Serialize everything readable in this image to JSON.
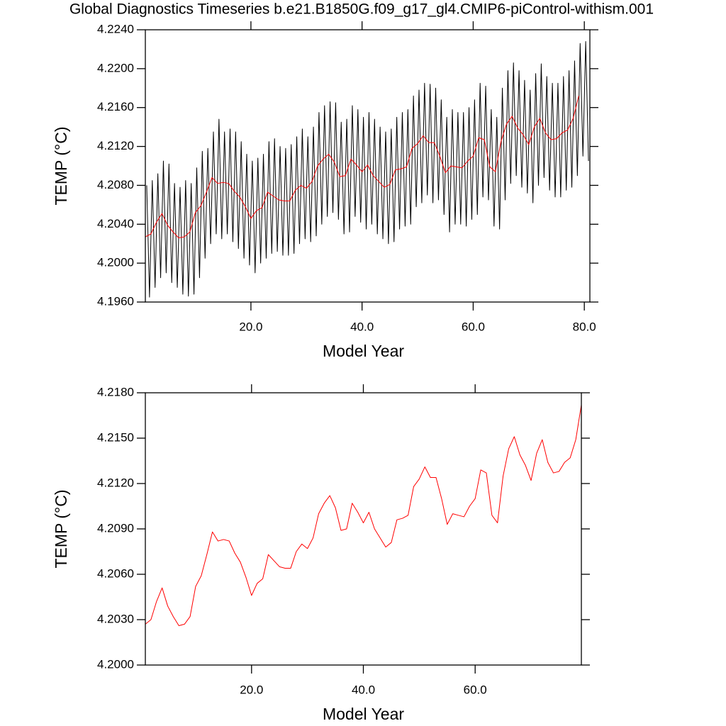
{
  "title": "Global Diagnostics Timeseries b.e21.B1850G.f09_g17_gl4.CMIP6-piControl-withism.001",
  "chart_data": [
    {
      "type": "line",
      "xlabel": "Model Year",
      "ylabel": "TEMP (°C)",
      "xlim": [
        1,
        81
      ],
      "ylim": [
        4.196,
        4.224
      ],
      "xticks": [
        {
          "value": 20,
          "label": "20.0"
        },
        {
          "value": 40,
          "label": "40.0"
        },
        {
          "value": 60,
          "label": "60.0"
        },
        {
          "value": 80,
          "label": "80.0"
        }
      ],
      "yticks": [
        {
          "value": 4.196,
          "label": "4.1960"
        },
        {
          "value": 4.2,
          "label": "4.2000"
        },
        {
          "value": 4.204,
          "label": "4.2040"
        },
        {
          "value": 4.208,
          "label": "4.2080"
        },
        {
          "value": 4.212,
          "label": "4.2120"
        },
        {
          "value": 4.216,
          "label": "4.2160"
        },
        {
          "value": 4.22,
          "label": "4.2200"
        },
        {
          "value": 4.224,
          "label": "4.2240"
        }
      ],
      "series": [
        {
          "color": "#000000",
          "x": [
            1.25,
            1.75,
            2.25,
            2.75,
            3.25,
            3.75,
            4.25,
            4.75,
            5.25,
            5.75,
            6.25,
            6.75,
            7.25,
            7.75,
            8.25,
            8.75,
            9.25,
            9.75,
            10.25,
            10.75,
            11.25,
            11.75,
            12.25,
            12.75,
            13.25,
            13.75,
            14.25,
            14.75,
            15.25,
            15.75,
            16.25,
            16.75,
            17.25,
            17.75,
            18.25,
            18.75,
            19.25,
            19.75,
            20.25,
            20.75,
            21.25,
            21.75,
            22.25,
            22.75,
            23.25,
            23.75,
            24.25,
            24.75,
            25.25,
            25.75,
            26.25,
            26.75,
            27.25,
            27.75,
            28.25,
            28.75,
            29.25,
            29.75,
            30.25,
            30.75,
            31.25,
            31.75,
            32.25,
            32.75,
            33.25,
            33.75,
            34.25,
            34.75,
            35.25,
            35.75,
            36.25,
            36.75,
            37.25,
            37.75,
            38.25,
            38.75,
            39.25,
            39.75,
            40.25,
            40.75,
            41.25,
            41.75,
            42.25,
            42.75,
            43.25,
            43.75,
            44.25,
            44.75,
            45.25,
            45.75,
            46.25,
            46.75,
            47.25,
            47.75,
            48.25,
            48.75,
            49.25,
            49.75,
            50.25,
            50.75,
            51.25,
            51.75,
            52.25,
            52.75,
            53.25,
            53.75,
            54.25,
            54.75,
            55.25,
            55.75,
            56.25,
            56.75,
            57.25,
            57.75,
            58.25,
            58.75,
            59.25,
            59.75,
            60.25,
            60.75,
            61.25,
            61.75,
            62.25,
            62.75,
            63.25,
            63.75,
            64.25,
            64.75,
            65.25,
            65.75,
            66.25,
            66.75,
            67.25,
            67.75,
            68.25,
            68.75,
            69.25,
            69.75,
            70.25,
            70.75,
            71.25,
            71.75,
            72.25,
            72.75,
            73.25,
            73.75,
            74.25,
            74.75,
            75.25,
            75.75,
            76.25,
            76.75,
            77.25,
            77.75,
            78.25,
            78.75,
            79.25,
            79.75,
            80.25,
            80.75
          ],
          "values": [
            4.208,
            4.1965,
            4.2085,
            4.1975,
            4.2092,
            4.1985,
            4.2105,
            4.199,
            4.2102,
            4.198,
            4.2082,
            4.1975,
            4.2078,
            4.1968,
            4.2085,
            4.1966,
            4.2082,
            4.1968,
            4.2098,
            4.1985,
            4.2115,
            4.2005,
            4.2118,
            4.202,
            4.2135,
            4.203,
            4.2148,
            4.2025,
            4.2135,
            4.203,
            4.2138,
            4.2022,
            4.2135,
            4.2015,
            4.2125,
            4.2005,
            4.2112,
            4.1998,
            4.2105,
            4.199,
            4.2108,
            4.2,
            4.2112,
            4.2005,
            4.2125,
            4.201,
            4.2128,
            4.2012,
            4.212,
            4.2008,
            4.2118,
            4.2008,
            4.2122,
            4.201,
            4.213,
            4.202,
            4.2138,
            4.2025,
            4.213,
            4.2022,
            4.214,
            4.2028,
            4.2155,
            4.204,
            4.2162,
            4.2048,
            4.2166,
            4.2052,
            4.2165,
            4.2045,
            4.2145,
            4.203,
            4.2148,
            4.2032,
            4.2162,
            4.2048,
            4.2158,
            4.2042,
            4.215,
            4.2035,
            4.2155,
            4.204,
            4.2148,
            4.203,
            4.214,
            4.2025,
            4.2135,
            4.202,
            4.2138,
            4.2022,
            4.215,
            4.2035,
            4.2155,
            4.2038,
            4.2158,
            4.204,
            4.2172,
            4.2058,
            4.2178,
            4.2062,
            4.2185,
            4.207,
            4.2184,
            4.2062,
            4.218,
            4.2065,
            4.2168,
            4.205,
            4.215,
            4.2032,
            4.2158,
            4.204,
            4.2155,
            4.204,
            4.2155,
            4.2038,
            4.216,
            4.2045,
            4.2168,
            4.205,
            4.2185,
            4.2068,
            4.2182,
            4.2065,
            4.2158,
            4.2038,
            4.215,
            4.2035,
            4.218,
            4.2065,
            4.2198,
            4.2082,
            4.2206,
            4.209,
            4.2198,
            4.2078,
            4.2188,
            4.2072,
            4.2178,
            4.2062,
            4.2195,
            4.208,
            4.2205,
            4.2088,
            4.2192,
            4.2075,
            4.2185,
            4.2068,
            4.2185,
            4.2068,
            4.2192,
            4.2075,
            4.2198,
            4.2078,
            4.2208,
            4.209,
            4.2226,
            4.211,
            4.2228,
            4.2105
          ]
        },
        {
          "color": "#ff0000",
          "x": [
            1,
            2,
            3,
            4,
            5,
            6,
            7,
            8,
            9,
            10,
            11,
            12,
            13,
            14,
            15,
            16,
            17,
            18,
            19,
            20,
            21,
            22,
            23,
            24,
            25,
            26,
            27,
            28,
            29,
            30,
            31,
            32,
            33,
            34,
            35,
            36,
            37,
            38,
            39,
            40,
            41,
            42,
            43,
            44,
            45,
            46,
            47,
            48,
            49,
            50,
            51,
            52,
            53,
            54,
            55,
            56,
            57,
            58,
            59,
            60,
            61,
            62,
            63,
            64,
            65,
            66,
            67,
            68,
            69,
            70,
            71,
            72,
            73,
            74,
            75,
            76,
            77,
            78,
            79
          ],
          "values": [
            4.2027,
            4.203,
            4.2042,
            4.2051,
            4.2039,
            4.2032,
            4.2026,
            4.2027,
            4.2032,
            4.2052,
            4.2059,
            4.2073,
            4.2088,
            4.2082,
            4.2083,
            4.2082,
            4.2074,
            4.2068,
            4.2058,
            4.2046,
            4.2054,
            4.2057,
            4.2073,
            4.2069,
            4.2065,
            4.2064,
            4.2064,
            4.2075,
            4.208,
            4.2077,
            4.2084,
            4.21,
            4.2107,
            4.2112,
            4.2104,
            4.2089,
            4.209,
            4.2107,
            4.2101,
            4.2094,
            4.2101,
            4.209,
            4.2084,
            4.2078,
            4.2081,
            4.2096,
            4.2097,
            4.2099,
            4.2118,
            4.2123,
            4.2131,
            4.2124,
            4.2124,
            4.211,
            4.2093,
            4.21,
            4.2099,
            4.2098,
            4.2105,
            4.211,
            4.2129,
            4.2127,
            4.2099,
            4.2094,
            4.2125,
            4.2143,
            4.2151,
            4.2139,
            4.2132,
            4.2122,
            4.214,
            4.2149,
            4.2134,
            4.2127,
            4.2128,
            4.2134,
            4.2137,
            4.2149,
            4.2172
          ]
        }
      ]
    },
    {
      "type": "line",
      "xlabel": "Model Year",
      "ylabel": "TEMP (°C)",
      "xlim": [
        1,
        79
      ],
      "ylim": [
        4.2,
        4.218
      ],
      "xticks": [
        {
          "value": 20,
          "label": "20.0"
        },
        {
          "value": 40,
          "label": "40.0"
        },
        {
          "value": 60,
          "label": "60.0"
        }
      ],
      "yticks": [
        {
          "value": 4.2,
          "label": "4.2000"
        },
        {
          "value": 4.203,
          "label": "4.2030"
        },
        {
          "value": 4.206,
          "label": "4.2060"
        },
        {
          "value": 4.209,
          "label": "4.2090"
        },
        {
          "value": 4.212,
          "label": "4.2120"
        },
        {
          "value": 4.215,
          "label": "4.2150"
        },
        {
          "value": 4.218,
          "label": "4.2180"
        }
      ],
      "series": [
        {
          "color": "#ff0000",
          "x": [
            1,
            2,
            3,
            4,
            5,
            6,
            7,
            8,
            9,
            10,
            11,
            12,
            13,
            14,
            15,
            16,
            17,
            18,
            19,
            20,
            21,
            22,
            23,
            24,
            25,
            26,
            27,
            28,
            29,
            30,
            31,
            32,
            33,
            34,
            35,
            36,
            37,
            38,
            39,
            40,
            41,
            42,
            43,
            44,
            45,
            46,
            47,
            48,
            49,
            50,
            51,
            52,
            53,
            54,
            55,
            56,
            57,
            58,
            59,
            60,
            61,
            62,
            63,
            64,
            65,
            66,
            67,
            68,
            69,
            70,
            71,
            72,
            73,
            74,
            75,
            76,
            77,
            78,
            79
          ],
          "values": [
            4.2027,
            4.203,
            4.2042,
            4.2051,
            4.2039,
            4.2032,
            4.2026,
            4.2027,
            4.2032,
            4.2052,
            4.2059,
            4.2073,
            4.2088,
            4.2082,
            4.2083,
            4.2082,
            4.2074,
            4.2068,
            4.2058,
            4.2046,
            4.2054,
            4.2057,
            4.2073,
            4.2069,
            4.2065,
            4.2064,
            4.2064,
            4.2075,
            4.208,
            4.2077,
            4.2084,
            4.21,
            4.2107,
            4.2112,
            4.2104,
            4.2089,
            4.209,
            4.2107,
            4.2101,
            4.2094,
            4.2101,
            4.209,
            4.2084,
            4.2078,
            4.2081,
            4.2096,
            4.2097,
            4.2099,
            4.2118,
            4.2123,
            4.2131,
            4.2124,
            4.2124,
            4.211,
            4.2093,
            4.21,
            4.2099,
            4.2098,
            4.2105,
            4.211,
            4.2129,
            4.2127,
            4.2099,
            4.2094,
            4.2125,
            4.2143,
            4.2151,
            4.2139,
            4.2132,
            4.2122,
            4.214,
            4.2149,
            4.2134,
            4.2127,
            4.2128,
            4.2134,
            4.2137,
            4.2149,
            4.2172
          ]
        }
      ]
    }
  ]
}
